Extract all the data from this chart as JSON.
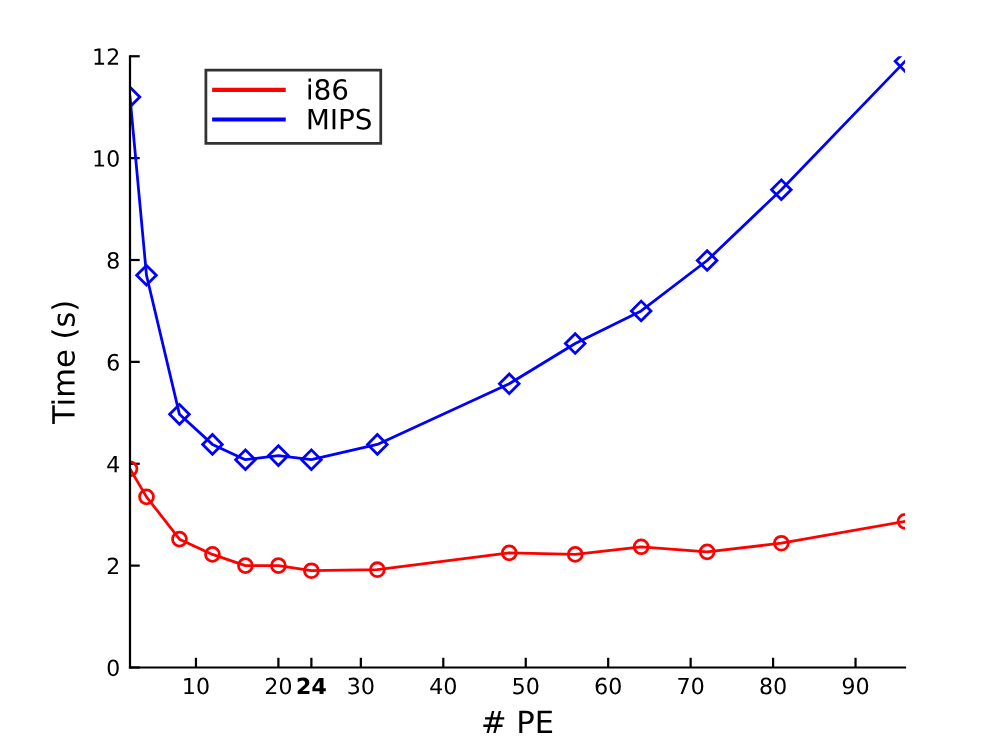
{
  "chart_data": {
    "type": "line",
    "xlabel": "# PE",
    "ylabel": "Time (s)",
    "x": [
      2,
      4,
      8,
      12,
      16,
      20,
      24,
      32,
      48,
      56,
      64,
      72,
      81,
      96
    ],
    "series": [
      {
        "name": "i86",
        "color": "#ff0000",
        "marker": "circle",
        "values": [
          3.9,
          3.35,
          2.52,
          2.22,
          2.0,
          2.0,
          1.9,
          1.92,
          2.25,
          2.22,
          2.37,
          2.27,
          2.44,
          2.87
        ]
      },
      {
        "name": "MIPS",
        "color": "#0000ff",
        "marker": "diamond",
        "values": [
          11.2,
          7.7,
          4.97,
          4.38,
          4.08,
          4.16,
          4.08,
          4.38,
          5.57,
          6.36,
          7.0,
          7.99,
          9.38,
          11.9
        ]
      }
    ],
    "xlim": [
      2,
      96
    ],
    "xticks": [
      10,
      20,
      {
        "value": 24,
        "label": "24"
      },
      30,
      40,
      50,
      60,
      70,
      80,
      90
    ],
    "ylim": [
      0,
      12
    ],
    "yticks": [
      0,
      2,
      4,
      6,
      8,
      10,
      12
    ],
    "grid": false,
    "legend": "top left",
    "line_style": "solid"
  }
}
